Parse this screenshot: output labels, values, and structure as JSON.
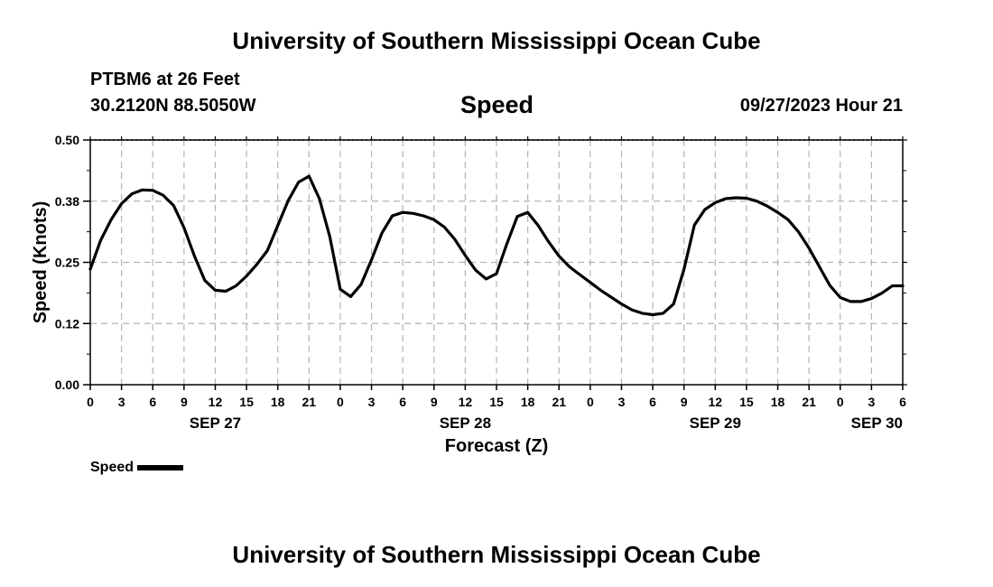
{
  "header": {
    "title": "University of Southern Mississippi Ocean Cube",
    "station": "PTBM6 at 26 Feet",
    "coordinates": "30.2120N  88.5050W",
    "subtitle": "Speed",
    "timestamp": "09/27/2023 Hour 21"
  },
  "footer": {
    "title": "University of Southern Mississippi Ocean Cube"
  },
  "legend": {
    "label": "Speed",
    "color": "#000000"
  },
  "chart_data": {
    "type": "line",
    "title": "Speed",
    "xlabel": "Forecast (Z)",
    "ylabel": "Speed (Knots)",
    "xlim": [
      0,
      78
    ],
    "ylim": [
      0,
      0.5
    ],
    "grid": true,
    "y_ticks": [
      0.0,
      0.125,
      0.25,
      0.375,
      0.5
    ],
    "y_tick_labels": [
      "0.00",
      "0.12",
      "0.25",
      "0.38",
      "0.50"
    ],
    "x_ticks": [
      0,
      3,
      6,
      9,
      12,
      15,
      18,
      21,
      24,
      27,
      30,
      33,
      36,
      39,
      42,
      45,
      48,
      51,
      54,
      57,
      60,
      63,
      66,
      69,
      72,
      75,
      78
    ],
    "x_tick_labels": [
      "0",
      "3",
      "6",
      "9",
      "12",
      "15",
      "18",
      "21",
      "0",
      "3",
      "6",
      "9",
      "12",
      "15",
      "18",
      "21",
      "0",
      "3",
      "6",
      "9",
      "12",
      "15",
      "18",
      "21",
      "0",
      "3",
      "6"
    ],
    "date_labels": [
      {
        "x": 12,
        "label": "SEP 27"
      },
      {
        "x": 36,
        "label": "SEP 28"
      },
      {
        "x": 60,
        "label": "SEP 29"
      },
      {
        "x": 78,
        "label": "SEP 30"
      }
    ],
    "series": [
      {
        "name": "Speed",
        "color": "#000000",
        "x": [
          0,
          1,
          2,
          3,
          4,
          5,
          6,
          7,
          8,
          9,
          10,
          11,
          12,
          13,
          14,
          15,
          16,
          17,
          18,
          19,
          20,
          21,
          22,
          23,
          24,
          25,
          26,
          27,
          28,
          29,
          30,
          31,
          32,
          33,
          34,
          35,
          36,
          37,
          38,
          39,
          40,
          41,
          42,
          43,
          44,
          45,
          46,
          47,
          48,
          49,
          50,
          51,
          52,
          53,
          54,
          55,
          56,
          57,
          58,
          59,
          60,
          61,
          62,
          63,
          64,
          65,
          66,
          67,
          68,
          69,
          70,
          71,
          72,
          73,
          74,
          75,
          76,
          77,
          78
        ],
        "values": [
          0.236,
          0.295,
          0.337,
          0.37,
          0.39,
          0.398,
          0.397,
          0.387,
          0.366,
          0.321,
          0.263,
          0.213,
          0.193,
          0.191,
          0.202,
          0.222,
          0.246,
          0.274,
          0.325,
          0.376,
          0.414,
          0.426,
          0.38,
          0.302,
          0.195,
          0.18,
          0.205,
          0.255,
          0.31,
          0.345,
          0.352,
          0.35,
          0.345,
          0.337,
          0.322,
          0.297,
          0.264,
          0.234,
          0.216,
          0.227,
          0.288,
          0.344,
          0.352,
          0.325,
          0.292,
          0.263,
          0.241,
          0.225,
          0.209,
          0.193,
          0.179,
          0.165,
          0.153,
          0.146,
          0.143,
          0.146,
          0.165,
          0.236,
          0.326,
          0.358,
          0.372,
          0.38,
          0.382,
          0.381,
          0.375,
          0.365,
          0.352,
          0.337,
          0.312,
          0.279,
          0.241,
          0.203,
          0.178,
          0.17,
          0.17,
          0.176,
          0.187,
          0.202,
          0.202
        ]
      }
    ]
  }
}
